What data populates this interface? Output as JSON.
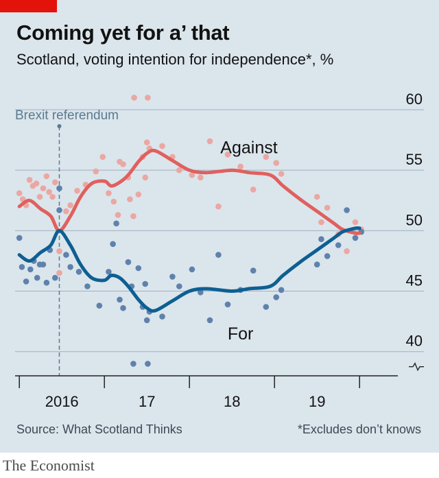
{
  "header": {
    "title": "Coming yet for a’ that",
    "subtitle": "Scotland, voting intention for independence*, %"
  },
  "footer": {
    "source": "Source: What Scotland Thinks",
    "footnote": "*Excludes don’t knows",
    "brand": "The Economist"
  },
  "colors": {
    "brand_red": "#e3120b",
    "background": "#dbe5ec",
    "against_line": "#e0605e",
    "against_dots": "#eba7a2",
    "for_line": "#0d5f92",
    "for_dots": "#5e82ac",
    "grid": "#9fb1bf",
    "text": "#121212",
    "annotation": "#5a7a90"
  },
  "chart_data": {
    "type": "line",
    "title": "Coming yet for a’ that",
    "subtitle": "Scotland, voting intention for independence*, %",
    "ylim": [
      38,
      60
    ],
    "y_ticks": [
      40,
      45,
      50,
      55,
      60
    ],
    "y_axis_position": "right",
    "y_axis_broken_below": 40,
    "xlim": [
      2015.45,
      2019.95
    ],
    "x_ticks": [
      {
        "label": "2016",
        "value": 2016.0
      },
      {
        "label": "17",
        "value": 2017.0
      },
      {
        "label": "18",
        "value": 2018.0
      },
      {
        "label": "19",
        "value": 2019.0
      }
    ],
    "x_boundaries": [
      2015.5,
      2016.5,
      2017.5,
      2018.5,
      2019.5
    ],
    "grid": true,
    "annotations": [
      {
        "text": "Brexit referendum",
        "x": 2015.97,
        "style": "dashed vertical line"
      }
    ],
    "series": [
      {
        "name": "Against",
        "color": "#e0605e",
        "trend": [
          [
            2015.5,
            52.0
          ],
          [
            2015.62,
            52.5
          ],
          [
            2015.75,
            51.8
          ],
          [
            2015.87,
            51.2
          ],
          [
            2015.97,
            50.0
          ],
          [
            2016.1,
            51.2
          ],
          [
            2016.22,
            52.8
          ],
          [
            2016.35,
            53.9
          ],
          [
            2016.5,
            54.1
          ],
          [
            2016.58,
            53.7
          ],
          [
            2016.68,
            54.0
          ],
          [
            2016.78,
            54.6
          ],
          [
            2016.9,
            55.7
          ],
          [
            2017.0,
            56.4
          ],
          [
            2017.1,
            56.6
          ],
          [
            2017.3,
            55.8
          ],
          [
            2017.5,
            55.0
          ],
          [
            2017.7,
            54.8
          ],
          [
            2018.0,
            55.0
          ],
          [
            2018.2,
            54.8
          ],
          [
            2018.45,
            54.6
          ],
          [
            2018.6,
            53.7
          ],
          [
            2018.8,
            52.6
          ],
          [
            2019.0,
            51.6
          ],
          [
            2019.2,
            50.6
          ],
          [
            2019.3,
            50.1
          ],
          [
            2019.45,
            49.8
          ],
          [
            2019.5,
            49.8
          ]
        ],
        "polls": [
          [
            2015.5,
            53.1
          ],
          [
            2015.54,
            52.6
          ],
          [
            2015.58,
            52.1
          ],
          [
            2015.62,
            54.2
          ],
          [
            2015.66,
            53.7
          ],
          [
            2015.7,
            53.9
          ],
          [
            2015.74,
            52.8
          ],
          [
            2015.78,
            53.5
          ],
          [
            2015.82,
            54.5
          ],
          [
            2015.85,
            53.2
          ],
          [
            2015.89,
            52.8
          ],
          [
            2015.92,
            54.0
          ],
          [
            2015.97,
            48.3
          ],
          [
            2015.97,
            46.5
          ],
          [
            2016.05,
            51.6
          ],
          [
            2016.1,
            52.1
          ],
          [
            2016.18,
            53.3
          ],
          [
            2016.28,
            53.8
          ],
          [
            2016.4,
            54.9
          ],
          [
            2016.48,
            56.1
          ],
          [
            2016.55,
            53.1
          ],
          [
            2016.61,
            52.4
          ],
          [
            2016.66,
            51.3
          ],
          [
            2016.68,
            55.7
          ],
          [
            2016.72,
            55.5
          ],
          [
            2016.78,
            54.4
          ],
          [
            2016.8,
            52.6
          ],
          [
            2016.84,
            51.2
          ],
          [
            2016.85,
            61.0
          ],
          [
            2016.9,
            53.0
          ],
          [
            2016.95,
            56.1
          ],
          [
            2016.98,
            54.4
          ],
          [
            2017.0,
            57.3
          ],
          [
            2017.01,
            61.0
          ],
          [
            2017.03,
            56.8
          ],
          [
            2017.18,
            57.0
          ],
          [
            2017.3,
            56.1
          ],
          [
            2017.38,
            55.0
          ],
          [
            2017.53,
            54.6
          ],
          [
            2017.63,
            54.4
          ],
          [
            2017.74,
            57.4
          ],
          [
            2017.84,
            52.0
          ],
          [
            2017.95,
            56.3
          ],
          [
            2018.1,
            55.3
          ],
          [
            2018.25,
            53.4
          ],
          [
            2018.4,
            56.1
          ],
          [
            2018.52,
            55.6
          ],
          [
            2018.58,
            54.7
          ],
          [
            2019.0,
            52.8
          ],
          [
            2019.05,
            50.7
          ],
          [
            2019.12,
            51.9
          ],
          [
            2019.25,
            49.7
          ],
          [
            2019.35,
            48.3
          ],
          [
            2019.45,
            50.7
          ],
          [
            2019.52,
            50.1
          ]
        ]
      },
      {
        "name": "For",
        "color": "#0d5f92",
        "trend": [
          [
            2015.5,
            48.0
          ],
          [
            2015.62,
            47.5
          ],
          [
            2015.75,
            48.2
          ],
          [
            2015.87,
            48.8
          ],
          [
            2015.97,
            50.0
          ],
          [
            2016.1,
            48.8
          ],
          [
            2016.22,
            47.2
          ],
          [
            2016.35,
            46.1
          ],
          [
            2016.5,
            45.9
          ],
          [
            2016.58,
            46.3
          ],
          [
            2016.68,
            46.1
          ],
          [
            2016.78,
            45.4
          ],
          [
            2016.9,
            44.3
          ],
          [
            2017.0,
            43.6
          ],
          [
            2017.1,
            43.4
          ],
          [
            2017.3,
            44.2
          ],
          [
            2017.5,
            45.0
          ],
          [
            2017.7,
            45.2
          ],
          [
            2018.0,
            45.0
          ],
          [
            2018.2,
            45.2
          ],
          [
            2018.45,
            45.4
          ],
          [
            2018.6,
            46.3
          ],
          [
            2018.8,
            47.4
          ],
          [
            2019.0,
            48.4
          ],
          [
            2019.2,
            49.4
          ],
          [
            2019.3,
            49.9
          ],
          [
            2019.45,
            50.2
          ],
          [
            2019.5,
            50.2
          ]
        ],
        "polls": [
          [
            2015.5,
            49.4
          ],
          [
            2015.53,
            47.0
          ],
          [
            2015.58,
            45.8
          ],
          [
            2015.63,
            46.8
          ],
          [
            2015.67,
            47.5
          ],
          [
            2015.71,
            46.1
          ],
          [
            2015.74,
            47.2
          ],
          [
            2015.78,
            47.2
          ],
          [
            2015.82,
            45.7
          ],
          [
            2015.86,
            48.4
          ],
          [
            2015.92,
            46.1
          ],
          [
            2015.97,
            53.5
          ],
          [
            2015.97,
            51.7
          ],
          [
            2016.05,
            48.0
          ],
          [
            2016.1,
            47.0
          ],
          [
            2016.2,
            46.6
          ],
          [
            2016.3,
            45.4
          ],
          [
            2016.44,
            43.8
          ],
          [
            2016.55,
            46.6
          ],
          [
            2016.6,
            48.9
          ],
          [
            2016.64,
            50.6
          ],
          [
            2016.68,
            44.3
          ],
          [
            2016.72,
            43.6
          ],
          [
            2016.78,
            47.4
          ],
          [
            2016.82,
            45.4
          ],
          [
            2016.84,
            39.0
          ],
          [
            2016.9,
            46.9
          ],
          [
            2016.95,
            43.7
          ],
          [
            2016.98,
            45.6
          ],
          [
            2017.0,
            42.6
          ],
          [
            2017.01,
            39.0
          ],
          [
            2017.03,
            43.3
          ],
          [
            2017.18,
            42.9
          ],
          [
            2017.3,
            46.2
          ],
          [
            2017.38,
            45.4
          ],
          [
            2017.53,
            46.8
          ],
          [
            2017.63,
            44.9
          ],
          [
            2017.74,
            42.6
          ],
          [
            2017.84,
            48.0
          ],
          [
            2017.95,
            43.9
          ],
          [
            2018.1,
            45.1
          ],
          [
            2018.25,
            46.7
          ],
          [
            2018.4,
            43.7
          ],
          [
            2018.52,
            44.5
          ],
          [
            2018.58,
            45.1
          ],
          [
            2019.0,
            47.2
          ],
          [
            2019.05,
            49.3
          ],
          [
            2019.12,
            47.9
          ],
          [
            2019.25,
            48.8
          ],
          [
            2019.35,
            51.7
          ],
          [
            2019.45,
            49.4
          ],
          [
            2019.52,
            49.9
          ]
        ]
      }
    ],
    "series_labels": [
      {
        "series": "Against",
        "text": "Against"
      },
      {
        "series": "For",
        "text": "For"
      }
    ]
  }
}
